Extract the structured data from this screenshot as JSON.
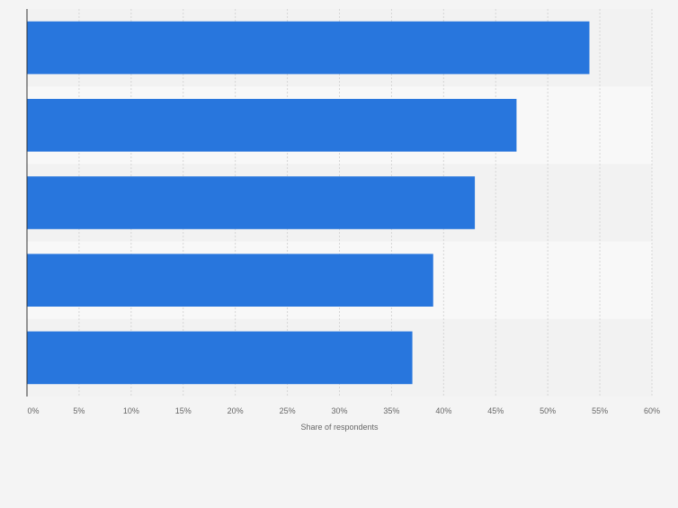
{
  "chart_data": {
    "type": "bar",
    "orientation": "horizontal",
    "categories": [
      "",
      "",
      "",
      "",
      ""
    ],
    "values": [
      54,
      47,
      43,
      39,
      37
    ],
    "title": "",
    "xlabel": "Share of respondents",
    "ylabel": "",
    "xlim": [
      0,
      60
    ],
    "x_ticks": [
      0,
      5,
      10,
      15,
      20,
      25,
      30,
      35,
      40,
      45,
      50,
      55,
      60
    ],
    "x_tick_labels": [
      "0%",
      "5%",
      "10%",
      "15%",
      "20%",
      "25%",
      "30%",
      "35%",
      "40%",
      "45%",
      "50%",
      "55%",
      "60%"
    ],
    "grid": "vertical-dashed",
    "legend": "none",
    "colors": {
      "bar": "#2876dd",
      "band_light": "#f8f8f8",
      "band_dark": "#f2f2f2",
      "grid": "#d6d6d6",
      "axis": "#333333",
      "tick_text": "#666666"
    }
  }
}
